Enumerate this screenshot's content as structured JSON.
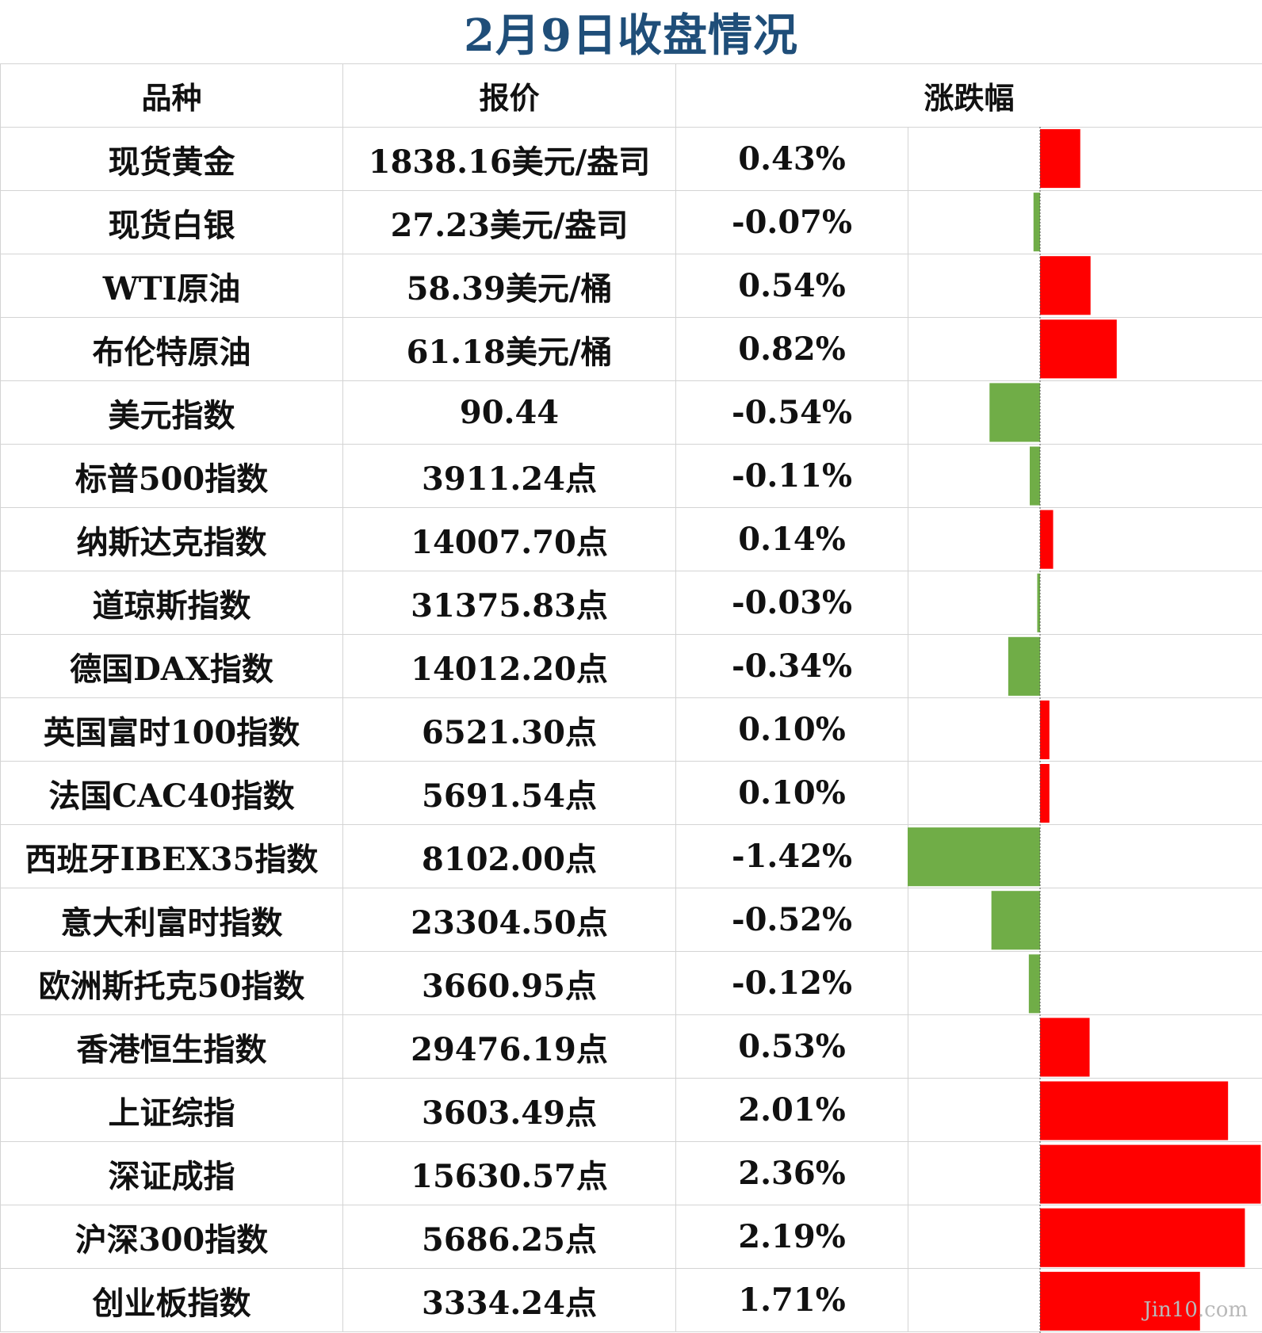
{
  "title": "2月9日收盘情况",
  "headers": {
    "name": "品种",
    "price": "报价",
    "change": "涨跌幅"
  },
  "colors": {
    "up": "#ff0000",
    "down": "#70ad47",
    "title": "#1f4e79"
  },
  "watermark": "Jin10.com",
  "chart_data": {
    "type": "table",
    "columns": [
      "品种",
      "报价",
      "涨跌幅"
    ],
    "rows": [
      {
        "name": "现货黄金",
        "price": "1838.16美元/盎司",
        "change_label": "0.43%",
        "change": 0.43
      },
      {
        "name": "现货白银",
        "price": "27.23美元/盎司",
        "change_label": "-0.07%",
        "change": -0.07
      },
      {
        "name": "WTI原油",
        "price": "58.39美元/桶",
        "change_label": "0.54%",
        "change": 0.54
      },
      {
        "name": "布伦特原油",
        "price": "61.18美元/桶",
        "change_label": "0.82%",
        "change": 0.82
      },
      {
        "name": "美元指数",
        "price": "90.44",
        "change_label": "-0.54%",
        "change": -0.54
      },
      {
        "name": "标普500指数",
        "price": "3911.24点",
        "change_label": "-0.11%",
        "change": -0.11
      },
      {
        "name": "纳斯达克指数",
        "price": "14007.70点",
        "change_label": "0.14%",
        "change": 0.14
      },
      {
        "name": "道琼斯指数",
        "price": "31375.83点",
        "change_label": "-0.03%",
        "change": -0.03
      },
      {
        "name": "德国DAX指数",
        "price": "14012.20点",
        "change_label": "-0.34%",
        "change": -0.34
      },
      {
        "name": "英国富时100指数",
        "price": "6521.30点",
        "change_label": "0.10%",
        "change": 0.1
      },
      {
        "name": "法国CAC40指数",
        "price": "5691.54点",
        "change_label": "0.10%",
        "change": 0.1
      },
      {
        "name": "西班牙IBEX35指数",
        "price": "8102.00点",
        "change_label": "-1.42%",
        "change": -1.42
      },
      {
        "name": "意大利富时指数",
        "price": "23304.50点",
        "change_label": "-0.52%",
        "change": -0.52
      },
      {
        "name": "欧洲斯托克50指数",
        "price": "3660.95点",
        "change_label": "-0.12%",
        "change": -0.12
      },
      {
        "name": "香港恒生指数",
        "price": "29476.19点",
        "change_label": "0.53%",
        "change": 0.53
      },
      {
        "name": "上证综指",
        "price": "3603.49点",
        "change_label": "2.01%",
        "change": 2.01
      },
      {
        "name": "深证成指",
        "price": "15630.57点",
        "change_label": "2.36%",
        "change": 2.36
      },
      {
        "name": "沪深300指数",
        "price": "5686.25点",
        "change_label": "2.19%",
        "change": 2.19
      },
      {
        "name": "创业板指数",
        "price": "3334.24点",
        "change_label": "1.71%",
        "change": 1.71
      }
    ]
  }
}
